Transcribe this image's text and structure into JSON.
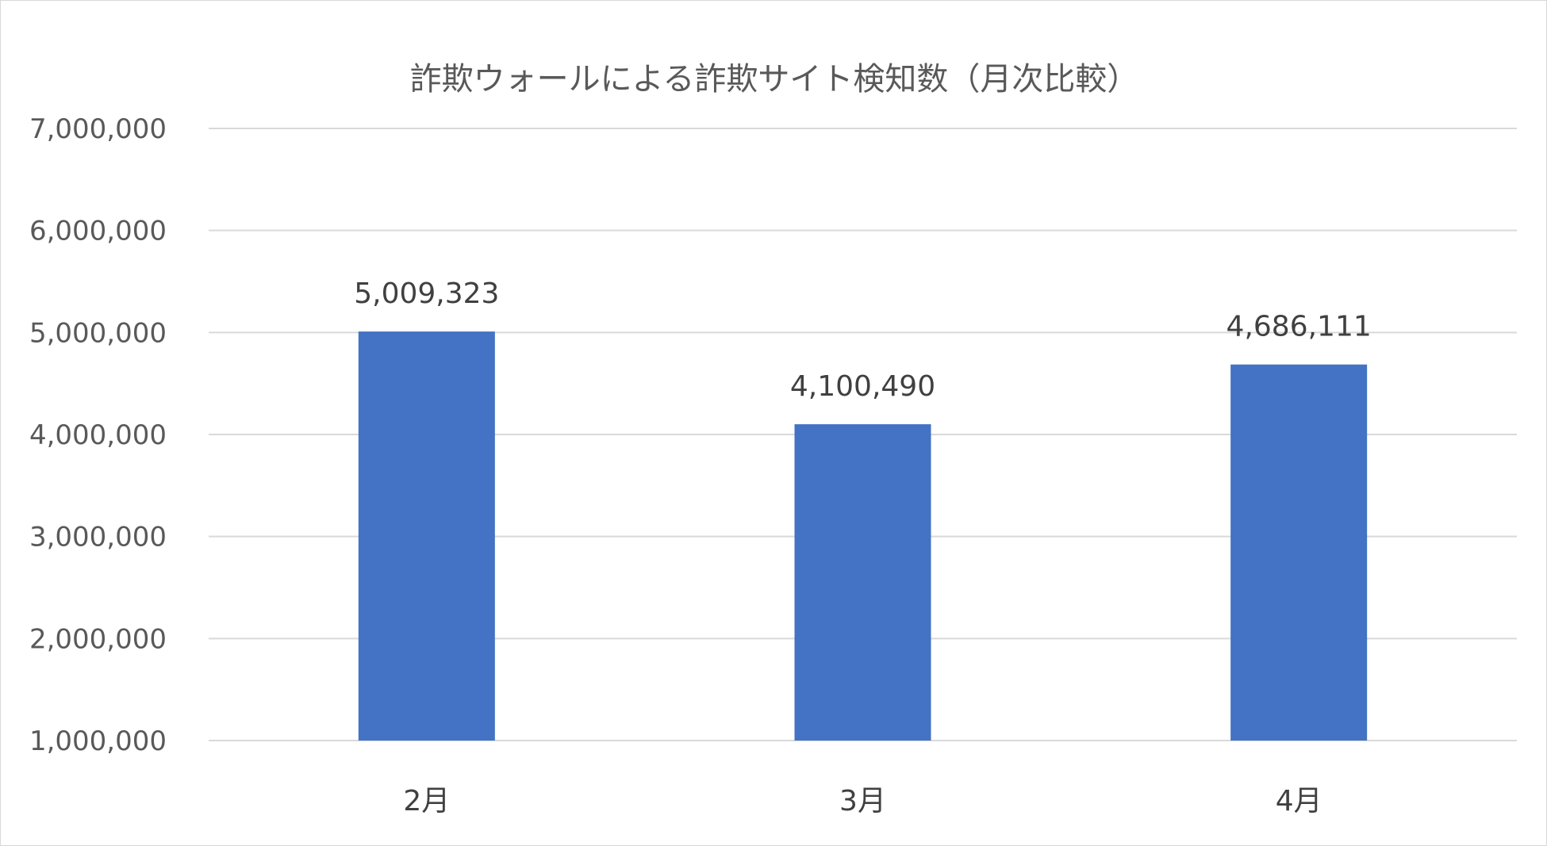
{
  "chart_data": {
    "type": "bar",
    "title": "詐欺ウォールによる詐欺サイト検知数（月次比較）",
    "categories": [
      "2月",
      "3月",
      "4月"
    ],
    "values": [
      5009323,
      4100490,
      4686111
    ],
    "data_labels": [
      "5,009,323",
      "4,100,490",
      "4,686,111"
    ],
    "ylim": [
      1000000,
      7000000
    ],
    "yticks": [
      1000000,
      2000000,
      3000000,
      4000000,
      5000000,
      6000000,
      7000000
    ],
    "ytick_labels": [
      "1,000,000",
      "2,000,000",
      "3,000,000",
      "4,000,000",
      "5,000,000",
      "6,000,000",
      "7,000,000"
    ],
    "grid": true,
    "bar_color": "#4472C4",
    "gridline_color": "#d9d9d9"
  }
}
